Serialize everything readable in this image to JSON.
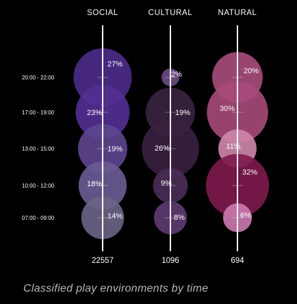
{
  "caption": "Classified play environments by time",
  "chart_data": {
    "type": "bubble",
    "title": "",
    "time_slots": [
      "20:00 - 22:00",
      "17:00 - 19:00",
      "13:00 - 15:00",
      "10:00 - 12:00",
      "07:00 - 09:00"
    ],
    "series": [
      {
        "name": "SOCIAL",
        "total": "22557",
        "percent": [
          27,
          23,
          19,
          18,
          14
        ],
        "labels": [
          "27%",
          "23%",
          "19%",
          "18%",
          "14%"
        ],
        "colors": [
          "#4d2c8c",
          "#532f93",
          "#5e4690",
          "#6b5c95",
          "#6d6488"
        ]
      },
      {
        "name": "CULTURAL",
        "total": "1096",
        "percent": [
          2,
          19,
          26,
          9,
          8
        ],
        "labels": [
          "2%",
          "19%",
          "26%",
          "9%",
          "8%"
        ],
        "colors": [
          "#6d4a86",
          "#3a2341",
          "#3a2040",
          "#4a2e58",
          "#5f3b74"
        ]
      },
      {
        "name": "NATURAL",
        "total": "694",
        "percent": [
          20,
          30,
          11,
          32,
          6
        ],
        "labels": [
          "20%",
          "30%",
          "11%",
          "32%",
          "6%"
        ],
        "colors": [
          "#aa4d7e",
          "#a84a7a",
          "#cf87aa",
          "#801a4e",
          "#cd7ab0"
        ]
      }
    ]
  }
}
